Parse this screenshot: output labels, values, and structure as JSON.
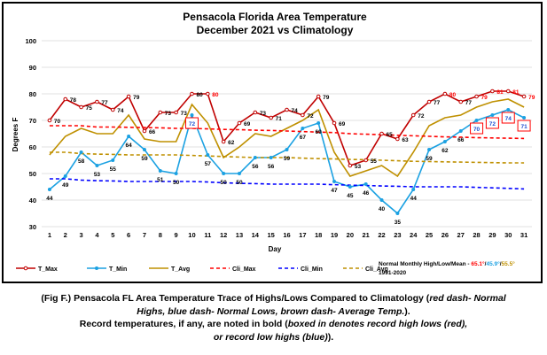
{
  "chart_data": {
    "type": "line",
    "title": "Pensacola Florida Area Temperature",
    "subtitle": "December 2021 vs Climatology",
    "xlabel": "Day",
    "ylabel": "Degrees F",
    "ylim": [
      30,
      100
    ],
    "yticks": [
      30,
      40,
      50,
      60,
      70,
      80,
      90,
      100
    ],
    "x": [
      1,
      2,
      3,
      4,
      5,
      6,
      7,
      8,
      9,
      10,
      11,
      12,
      13,
      14,
      15,
      16,
      17,
      18,
      19,
      20,
      21,
      22,
      23,
      24,
      25,
      26,
      27,
      28,
      29,
      30,
      31
    ],
    "grid": true,
    "legend_position": "bottom",
    "series": [
      {
        "name": "T_Max",
        "color": "#c00000",
        "style": "solid-marker",
        "values": [
          70,
          78,
          75,
          77,
          74,
          79,
          66,
          73,
          73,
          80,
          80,
          62,
          69,
          73,
          71,
          74,
          72,
          79,
          69,
          53,
          55,
          65,
          63,
          72,
          77,
          80,
          77,
          79,
          81,
          81,
          79
        ]
      },
      {
        "name": "T_Min",
        "color": "#1ba1e2",
        "style": "solid-marker",
        "values": [
          44,
          49,
          58,
          53,
          55,
          64,
          59,
          51,
          50,
          72,
          57,
          50,
          50,
          56,
          56,
          59,
          67,
          69,
          47,
          45,
          46,
          40,
          35,
          44,
          59,
          62,
          66,
          70,
          72,
          74,
          71
        ]
      },
      {
        "name": "T_Avg",
        "color": "#bf9000",
        "style": "solid",
        "values": [
          57,
          64,
          67,
          65,
          65,
          72,
          63,
          62,
          62,
          76,
          69,
          56,
          60,
          65,
          64,
          67,
          70,
          74,
          58,
          49,
          51,
          53,
          49,
          58,
          68,
          71,
          72,
          75,
          77,
          78,
          75
        ]
      },
      {
        "name": "Cli_Max",
        "color": "#ff0000",
        "style": "dash",
        "values": [
          68,
          68,
          68,
          67.5,
          67.5,
          67.4,
          67.3,
          67.2,
          67,
          67,
          66.8,
          66.6,
          66.5,
          66.3,
          66.2,
          66,
          65.8,
          65.6,
          65.4,
          65,
          64.8,
          64.6,
          64.4,
          64.2,
          64,
          63.8,
          63.7,
          63.5,
          63.4,
          63.3,
          63.2
        ]
      },
      {
        "name": "Cli_Min",
        "color": "#0000ff",
        "style": "dash",
        "values": [
          48,
          48,
          47.5,
          47.3,
          47.2,
          47,
          47,
          47,
          47,
          47,
          46.8,
          46.5,
          46.3,
          46.2,
          46,
          46,
          46,
          46,
          45.8,
          45.6,
          45.5,
          45.3,
          45.2,
          45,
          45,
          45,
          45,
          44.8,
          44.6,
          44.4,
          44.2
        ]
      },
      {
        "name": "Cli_Avg",
        "color": "#bf9000",
        "style": "dash",
        "values": [
          58,
          58,
          57.5,
          57.3,
          57.2,
          57,
          57,
          57,
          57,
          56.8,
          56.6,
          56.4,
          56.2,
          56,
          56,
          56,
          55.8,
          55.6,
          55.5,
          55.3,
          55.2,
          55,
          54.8,
          54.6,
          54.5,
          54.4,
          54.3,
          54.2,
          54.1,
          54,
          54
        ]
      }
    ],
    "labels_max": [
      "70",
      "78",
      "75",
      "77",
      "74",
      "79",
      "66",
      "73",
      "73",
      "80",
      "80",
      "62",
      "69",
      "73",
      "71",
      "74",
      "72",
      "79",
      "69",
      "53",
      "55",
      "65",
      "63",
      "72",
      "77",
      "80",
      "77",
      "79",
      "81",
      "81",
      "79"
    ],
    "labels_min": [
      "44",
      "49",
      "58",
      "53",
      "55",
      "64",
      "59",
      "51",
      "50",
      "72",
      "57",
      "50",
      "50",
      "56",
      "56",
      "59",
      "67",
      "69",
      "47",
      "45",
      "46",
      "40",
      "35",
      "44",
      "59",
      "62",
      "66",
      "70",
      "72",
      "74",
      "71"
    ],
    "record_highs_days": [
      11,
      26,
      28,
      29,
      30,
      31
    ],
    "record_high_lows_days": [
      10,
      28,
      29,
      30,
      31
    ],
    "normal_label": "Normal Monthly High/Low/Mean -",
    "normal_high": "65.1°",
    "normal_low": "45.9°",
    "normal_mean": "55.5°",
    "normal_period": "1991-2020"
  },
  "colors": {
    "t_max": "#c00000",
    "t_min": "#1ba1e2",
    "t_avg": "#bf9000",
    "cli_max": "#ff0000",
    "cli_min": "#0000ff",
    "cli_avg": "#bf9000",
    "grid": "#d9d9d9"
  },
  "caption": {
    "line1_a": "(Fig F.) Pensacola FL Area Temperature Trace of Highs/Lows Compared to Climatology (",
    "line1_i": "red dash- Normal",
    "line2_i": "Highs, blue dash- Normal Lows, brown dash- Average Temp.",
    "line2_b": ").",
    "line3_a": "Record temperatures, if any, are noted in bold (",
    "line3_i": "boxed in denotes record high lows (red),",
    "line4_i": "or record low highs (blue)",
    "line4_b": ")."
  }
}
